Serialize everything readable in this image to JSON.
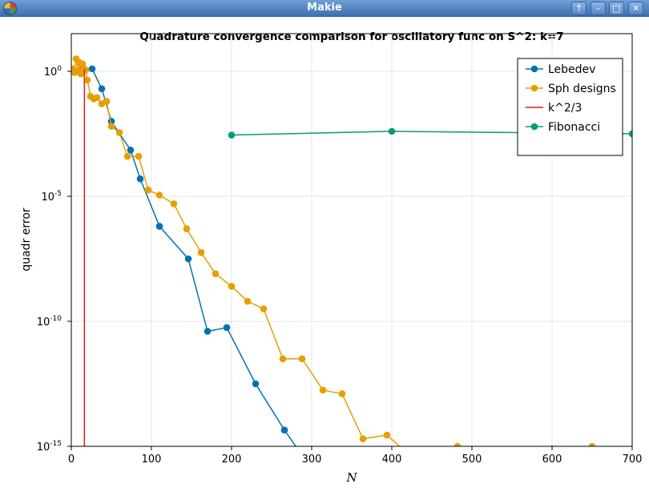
{
  "window": {
    "title": "Makie",
    "buttons": [
      "↑",
      "–",
      "□",
      "✕"
    ]
  },
  "chart_data": {
    "type": "scatter",
    "title": "Quadrature convergence comparison for oscillatory func on S^2: k=7",
    "xlabel": "N",
    "ylabel": "quadr error",
    "xlim": [
      0,
      700
    ],
    "ylim_log10": [
      -15,
      0.5
    ],
    "yscale": "log10",
    "grid": true,
    "legend_position": "top-right",
    "x_ticks": [
      "0",
      "100",
      "200",
      "300",
      "400",
      "500",
      "600",
      "700"
    ],
    "y_ticks": [
      {
        "base": "10",
        "exp": "0",
        "value": 0
      },
      {
        "base": "10",
        "exp": "-5",
        "value": -5
      },
      {
        "base": "10",
        "exp": "-10",
        "value": -10
      },
      {
        "base": "10",
        "exp": "-15",
        "value": -15
      }
    ],
    "series": [
      {
        "name": "Lebedev",
        "color": "#0072b2",
        "style": "line+markers",
        "x": [
          6,
          14,
          26,
          38,
          50,
          74,
          86,
          110,
          146,
          170,
          194,
          230,
          266,
          302
        ],
        "log10_y": [
          0.0,
          0.12,
          0.1,
          -0.7,
          -2.0,
          -3.15,
          -4.3,
          -6.2,
          -7.5,
          -10.4,
          -10.25,
          -12.5,
          -14.35,
          -16.0
        ]
      },
      {
        "name": "Sph designs",
        "color": "#e69f00",
        "style": "line+markers",
        "x": [
          2,
          4,
          6,
          8,
          10,
          12,
          14,
          16,
          18,
          20,
          24,
          28,
          32,
          38,
          44,
          50,
          60,
          70,
          84,
          96,
          110,
          128,
          144,
          162,
          180,
          200,
          220,
          240,
          264,
          288,
          314,
          338,
          364,
          394,
          420,
          450,
          482,
          518,
          560,
          600,
          650,
          700
        ],
        "log10_y": [
          0.1,
          -0.05,
          0.5,
          0.0,
          0.35,
          -0.1,
          0.3,
          0.1,
          0.05,
          -0.35,
          -1.0,
          -1.1,
          -1.05,
          -1.3,
          -1.2,
          -2.2,
          -2.45,
          -3.4,
          -3.4,
          -4.75,
          -4.95,
          -5.3,
          -6.3,
          -7.25,
          -8.1,
          -8.6,
          -9.2,
          -9.5,
          -11.5,
          -11.5,
          -12.75,
          -12.9,
          -14.7,
          -14.55,
          -15.3,
          -15.3,
          -15.0,
          -15.3,
          -15.3,
          -15.1,
          -15.0,
          -15.3
        ]
      },
      {
        "name": "k^2/3",
        "color": "#e41a1c",
        "style": "vline",
        "x": [
          16.33
        ]
      },
      {
        "name": "Fibonacci",
        "color": "#009e73",
        "style": "line+markers",
        "x": [
          200,
          400,
          700
        ],
        "log10_y": [
          -2.55,
          -2.4,
          -2.5
        ]
      }
    ]
  }
}
